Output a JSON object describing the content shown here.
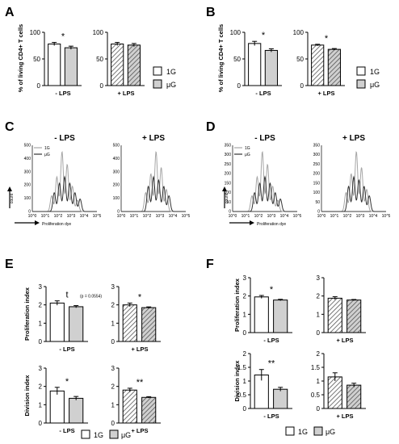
{
  "colors": {
    "white_bar": "#ffffff",
    "grey_bar": "#d0d0d0",
    "hatch": "#555555",
    "line_1G": "#a6a6a6",
    "line_uG": "#333333",
    "axis": "#000000"
  },
  "panels": {
    "A": "A",
    "B": "B",
    "C": "C",
    "D": "D",
    "E": "E",
    "F": "F"
  },
  "legend": {
    "g1": "1G",
    "ug": "μG"
  },
  "chart_data": [
    {
      "id": "A",
      "type": "bar",
      "ylabel": "% of living CD4+ T cells",
      "ylim": [
        0,
        100
      ],
      "yticks": [
        "0",
        "50",
        "100"
      ],
      "groups": [
        {
          "condition": "- LPS",
          "values": [
            78,
            71
          ],
          "errors": [
            3,
            3
          ],
          "hatched": false,
          "significance": "*"
        },
        {
          "condition": "+ LPS",
          "values": [
            78,
            76
          ],
          "errors": [
            3,
            3
          ],
          "hatched": true,
          "significance": ""
        }
      ]
    },
    {
      "id": "B",
      "type": "bar",
      "ylabel": "% of living CD4+ T cells",
      "ylim": [
        0,
        100
      ],
      "yticks": [
        "0",
        "50",
        "100"
      ],
      "groups": [
        {
          "condition": "- LPS",
          "values": [
            79,
            66
          ],
          "errors": [
            4,
            3
          ],
          "hatched": false,
          "significance": "*"
        },
        {
          "condition": "+ LPS",
          "values": [
            76,
            68
          ],
          "errors": [
            1.5,
            1.5
          ],
          "hatched": true,
          "significance": "*"
        }
      ]
    },
    {
      "id": "C",
      "type": "line",
      "xlabel": "Proliferation dye",
      "ylabel": "count",
      "legend": [
        "1G",
        "μG"
      ],
      "plots": [
        {
          "title": "- LPS",
          "yticks": [
            "0",
            "100",
            "200",
            "300",
            "400",
            "500"
          ],
          "xticks": [
            "10^0",
            "10^1",
            "10^2",
            "10^3",
            "10^4",
            "10^5"
          ]
        },
        {
          "title": "+ LPS",
          "yticks": [
            "0",
            "100",
            "200",
            "300",
            "400",
            "500"
          ],
          "xticks": [
            "10^0",
            "10^1",
            "10^2",
            "10^3",
            "10^4",
            "10^5"
          ]
        }
      ]
    },
    {
      "id": "D",
      "type": "line",
      "xlabel": "Proliferation dye",
      "ylabel": "count",
      "legend": [
        "1G",
        "μG"
      ],
      "plots": [
        {
          "title": "- LPS",
          "yticks": [
            "0",
            "50",
            "100",
            "150",
            "200",
            "250",
            "300",
            "350"
          ],
          "xticks": [
            "10^0",
            "10^1",
            "10^2",
            "10^3",
            "10^4",
            "10^5"
          ]
        },
        {
          "title": "+ LPS",
          "yticks": [
            "0",
            "50",
            "100",
            "150",
            "200",
            "250",
            "300",
            "350"
          ],
          "xticks": [
            "10^0",
            "10^1",
            "10^2",
            "10^3",
            "10^4",
            "10^5"
          ]
        }
      ]
    },
    {
      "id": "E",
      "type": "bar",
      "rows": [
        {
          "ylabel": "Proliferation index",
          "ylim": [
            0,
            3
          ],
          "yticks": [
            "0",
            "1",
            "2",
            "3"
          ],
          "groups": [
            {
              "condition": "- LPS",
              "values": [
                2.1,
                1.9
              ],
              "errors": [
                0.12,
                0.06
              ],
              "hatched": false,
              "significance": "t",
              "note": "(p = 0.0554)"
            },
            {
              "condition": "+ LPS",
              "values": [
                2.0,
                1.85
              ],
              "errors": [
                0.1,
                0.04
              ],
              "hatched": true,
              "significance": "*"
            }
          ]
        },
        {
          "ylabel": "Division index",
          "ylim": [
            0,
            3
          ],
          "yticks": [
            "0",
            "1",
            "2",
            "3"
          ],
          "groups": [
            {
              "condition": "- LPS",
              "values": [
                1.75,
                1.35
              ],
              "errors": [
                0.2,
                0.1
              ],
              "hatched": false,
              "significance": "*"
            },
            {
              "condition": "+ LPS",
              "values": [
                1.8,
                1.4
              ],
              "errors": [
                0.1,
                0.04
              ],
              "hatched": true,
              "significance": "**"
            }
          ]
        }
      ]
    },
    {
      "id": "F",
      "type": "bar",
      "rows": [
        {
          "ylabel": "Proliferation index",
          "ylim": [
            0,
            3
          ],
          "yticks": [
            "0",
            "1",
            "2",
            "3"
          ],
          "groups": [
            {
              "condition": "- LPS",
              "values": [
                1.95,
                1.78
              ],
              "errors": [
                0.08,
                0.04
              ],
              "hatched": false,
              "significance": "*"
            },
            {
              "condition": "+ LPS",
              "values": [
                1.88,
                1.78
              ],
              "errors": [
                0.08,
                0.03
              ],
              "hatched": true,
              "significance": ""
            }
          ]
        },
        {
          "ylabel": "Division index",
          "ylim": [
            0,
            2
          ],
          "yticks": [
            "0",
            "0.5",
            "1",
            "1.5",
            "2"
          ],
          "groups": [
            {
              "condition": "- LPS",
              "values": [
                1.22,
                0.7
              ],
              "errors": [
                0.2,
                0.07
              ],
              "hatched": false,
              "significance": "**"
            },
            {
              "condition": "+ LPS",
              "values": [
                1.15,
                0.85
              ],
              "errors": [
                0.15,
                0.07
              ],
              "hatched": true,
              "significance": ""
            }
          ]
        }
      ]
    }
  ]
}
